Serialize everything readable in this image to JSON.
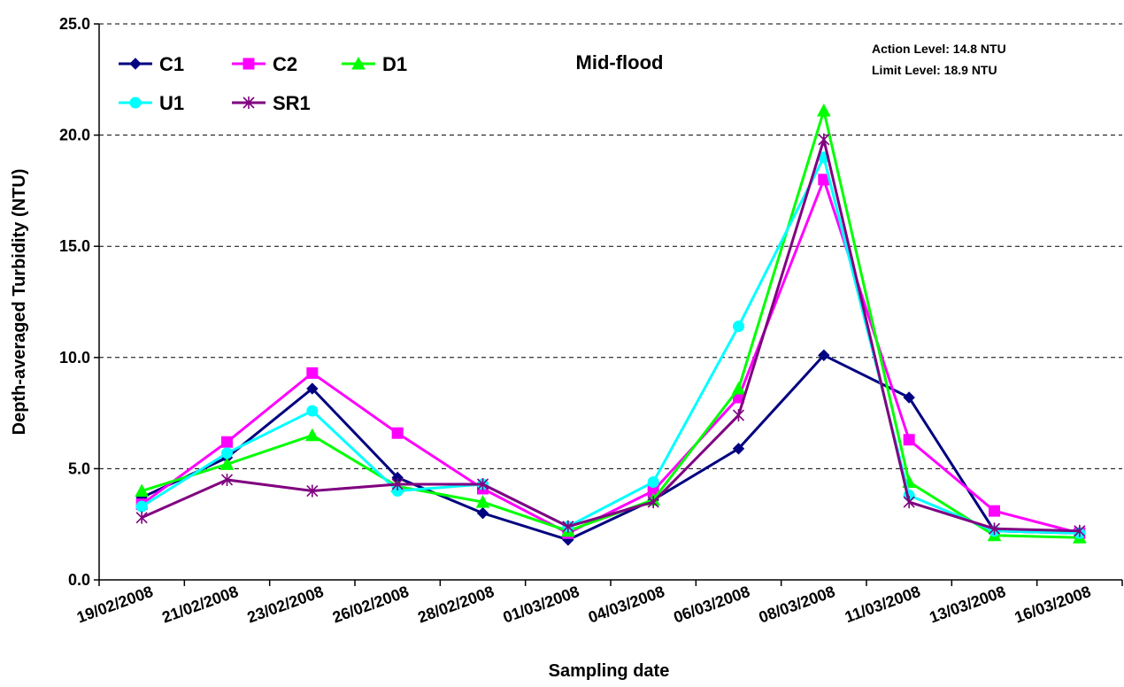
{
  "chart_data": {
    "type": "line",
    "title": "Mid-flood",
    "xlabel": "Sampling date",
    "ylabel": "Depth-averaged Turbidity (NTU)",
    "ylim": [
      0,
      25
    ],
    "yticks": [
      "0.0",
      "5.0",
      "10.0",
      "15.0",
      "20.0",
      "25.0"
    ],
    "categories": [
      "19/02/2008",
      "21/02/2008",
      "23/02/2008",
      "26/02/2008",
      "28/02/2008",
      "01/03/2008",
      "04/03/2008",
      "06/03/2008",
      "08/03/2008",
      "11/03/2008",
      "13/03/2008",
      "16/03/2008"
    ],
    "grid": "horizontal dashed",
    "legend_position": "top-left",
    "annotations": [
      "Action Level: 14.8 NTU",
      "Limit Level: 18.9 NTU"
    ],
    "series": [
      {
        "name": "C1",
        "color": "#000080",
        "marker": "diamond",
        "values": [
          3.7,
          5.5,
          8.6,
          4.6,
          3.0,
          1.8,
          3.6,
          5.9,
          10.1,
          8.2,
          2.2,
          2.1
        ]
      },
      {
        "name": "C2",
        "color": "#FF00FF",
        "marker": "square",
        "values": [
          3.4,
          6.2,
          9.3,
          6.6,
          4.1,
          2.1,
          4.0,
          8.2,
          18.0,
          6.3,
          3.1,
          2.1
        ]
      },
      {
        "name": "D1",
        "color": "#00FF00",
        "marker": "triangle",
        "values": [
          4.0,
          5.2,
          6.5,
          4.2,
          3.5,
          2.2,
          3.6,
          8.6,
          21.1,
          4.4,
          2.0,
          1.9
        ]
      },
      {
        "name": "U1",
        "color": "#00FFFF",
        "marker": "circle",
        "values": [
          3.3,
          5.7,
          7.6,
          4.0,
          4.3,
          2.4,
          4.4,
          11.4,
          19.0,
          3.8,
          2.2,
          2.1
        ]
      },
      {
        "name": "SR1",
        "color": "#800080",
        "marker": "star",
        "values": [
          2.8,
          4.5,
          4.0,
          4.3,
          4.3,
          2.4,
          3.5,
          7.4,
          19.8,
          3.5,
          2.3,
          2.2
        ]
      }
    ]
  }
}
